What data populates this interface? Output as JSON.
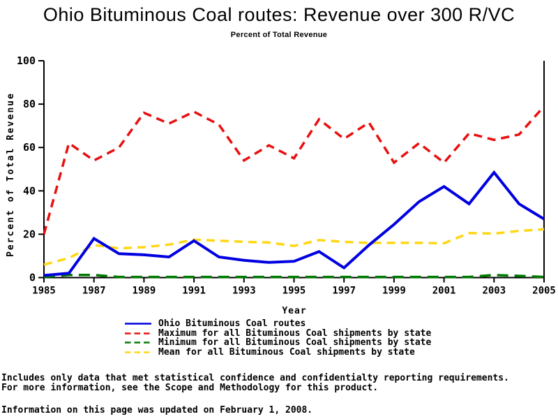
{
  "chart_data": {
    "type": "line",
    "title": "Ohio Bituminous Coal routes: Revenue over 300 R/VC",
    "subtitle": "Percent of Total Revenue",
    "xlabel": "Year",
    "ylabel": "Percent of Total Revenue",
    "xlim": [
      1985,
      2005
    ],
    "ylim": [
      0,
      100
    ],
    "xticks": [
      1985,
      1987,
      1989,
      1991,
      1993,
      1995,
      1997,
      1999,
      2001,
      2003,
      2005
    ],
    "yticks": [
      0,
      20,
      40,
      60,
      80,
      100
    ],
    "grid": false,
    "legend_position": "bottom-left",
    "x": [
      1985,
      1986,
      1987,
      1988,
      1989,
      1990,
      1991,
      1992,
      1993,
      1994,
      1995,
      1996,
      1997,
      1998,
      1999,
      2000,
      2001,
      2002,
      2003,
      2004,
      2005
    ],
    "series": [
      {
        "name": "Ohio Bituminous Coal routes",
        "color": "#0000e0",
        "style": "solid",
        "values": [
          1,
          2,
          18,
          11,
          10.5,
          9.5,
          17,
          9.5,
          8,
          7,
          7.5,
          12,
          4.5,
          15,
          24.5,
          35,
          42,
          34,
          48.5,
          34,
          27
        ]
      },
      {
        "name": "Maximum for all Bituminous Coal shipments by state",
        "color": "#e81010",
        "style": "dashed",
        "values": [
          20,
          62,
          54,
          60,
          76,
          71,
          76.5,
          70.5,
          54,
          61,
          55,
          73,
          64,
          71.5,
          53,
          62,
          53,
          66.5,
          63.5,
          66,
          79
        ]
      },
      {
        "name": "Minimum for all Bituminous Coal shipments by state",
        "color": "#007a00",
        "style": "dashed",
        "values": [
          0.3,
          1.2,
          1.2,
          0.3,
          0.3,
          0.3,
          0.3,
          0.3,
          0.3,
          0.3,
          0.3,
          0.3,
          0.3,
          0.3,
          0.3,
          0.3,
          0.3,
          0.3,
          1.2,
          0.8,
          0.3
        ]
      },
      {
        "name": "Mean for all Bituminous Coal shipments by state",
        "color": "#ffd714",
        "style": "dashed",
        "values": [
          6,
          9,
          15,
          13.5,
          14,
          15.2,
          17.5,
          17,
          16.5,
          16.2,
          14.6,
          17.3,
          16.5,
          16,
          16,
          16,
          15.8,
          20.5,
          20.3,
          21.5,
          22.3
        ]
      }
    ]
  },
  "footnotes": {
    "line1": "Includes only data that met statistical confidence and confidentialty reporting requirements.",
    "line2": "For more information, see the Scope and Methodology for this product.",
    "updated": "Information on this page was updated on February 1, 2008."
  },
  "colors": {
    "axis": "#000000",
    "background": "#ffffff",
    "text": "#000000"
  }
}
